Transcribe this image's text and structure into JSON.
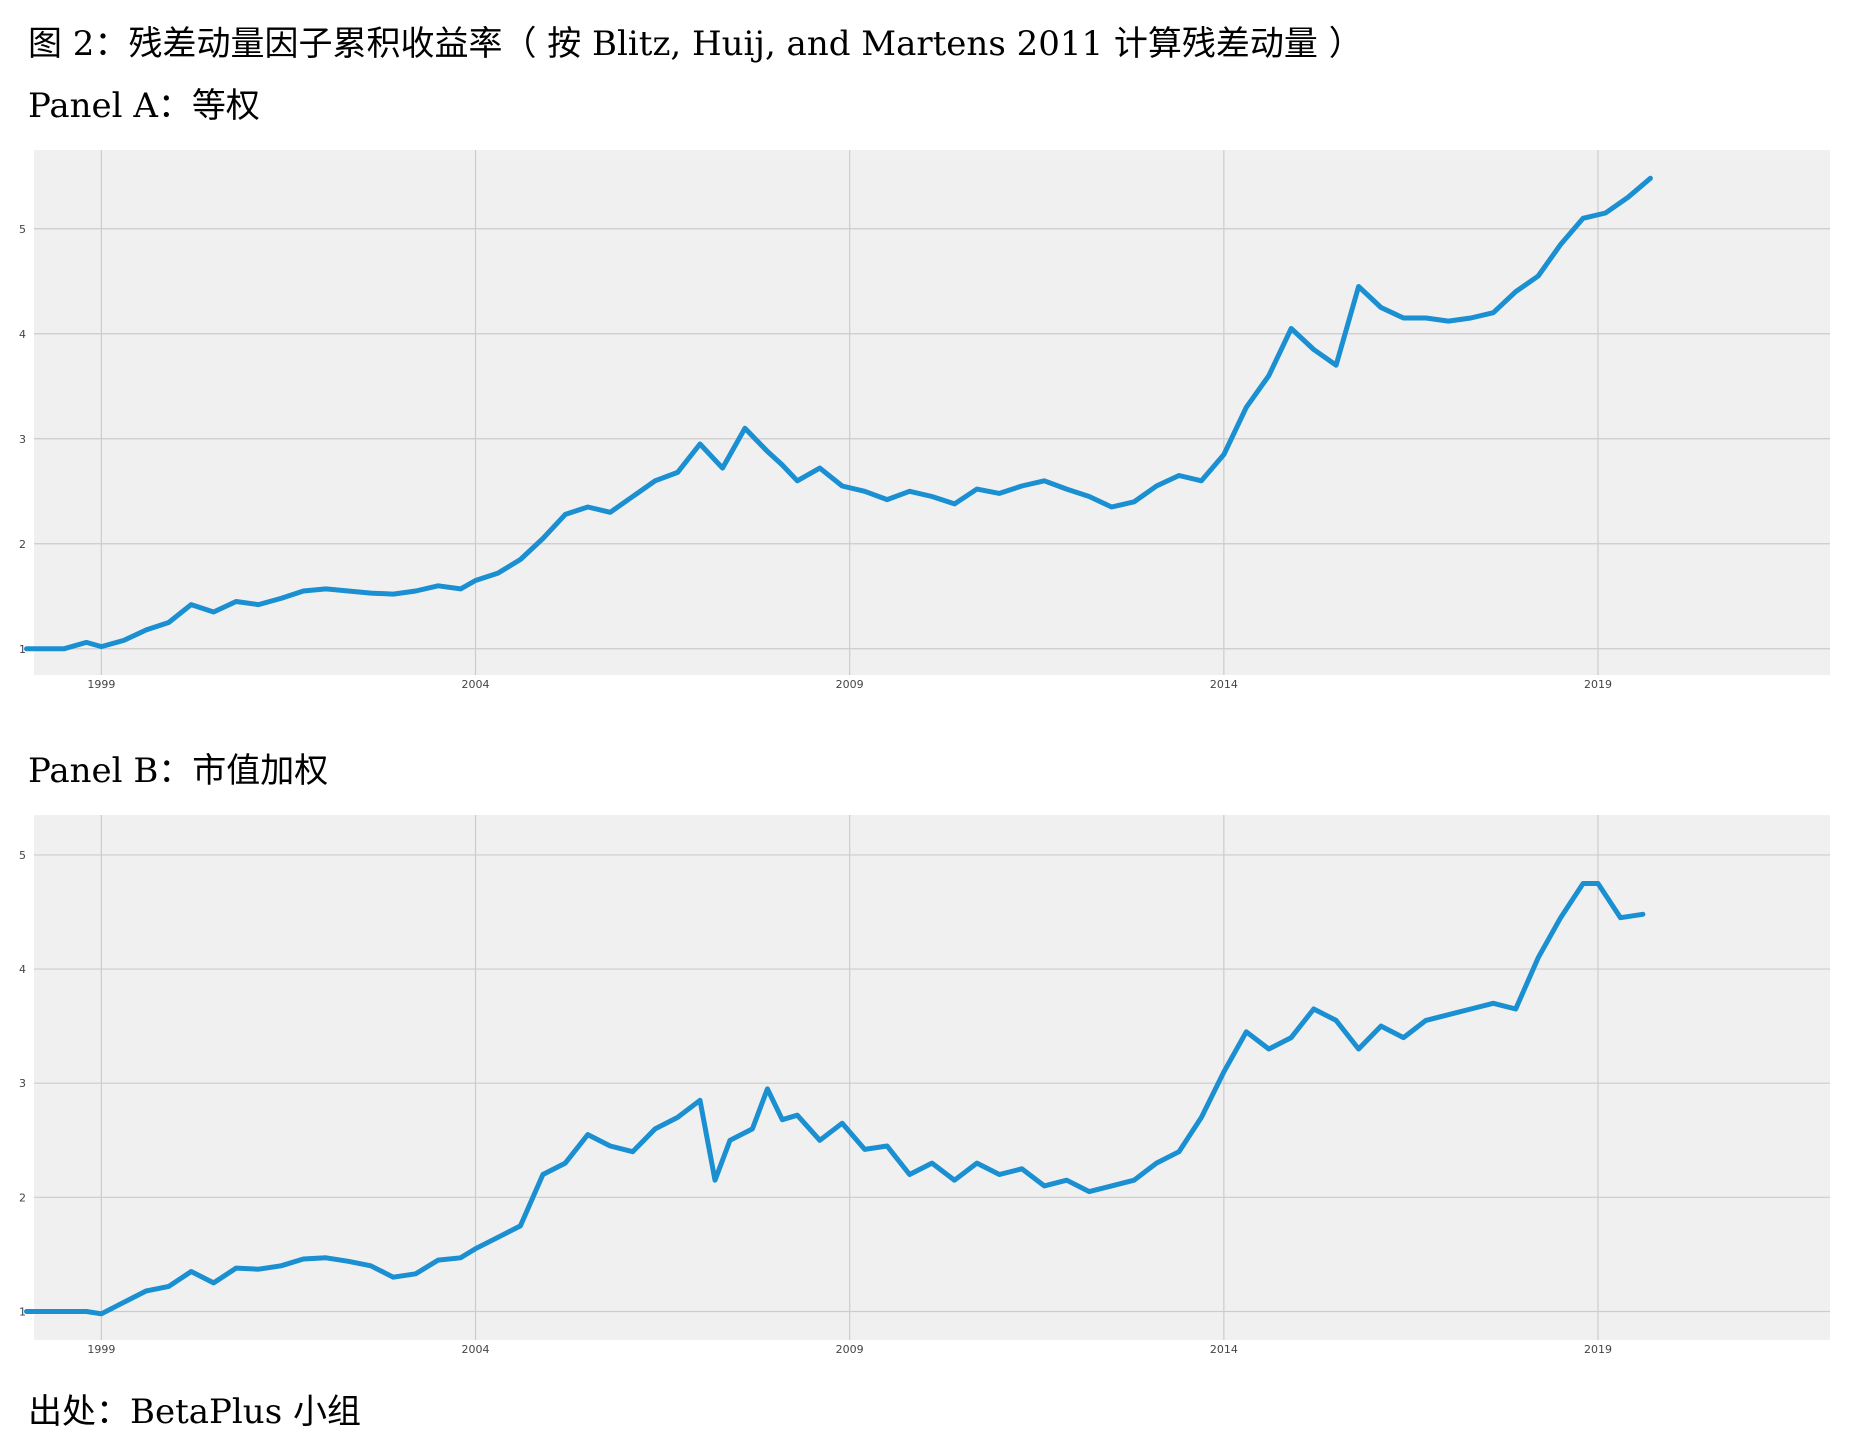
{
  "figure_title": "图 2：残差动量因子累积收益率（ 按 Blitz, Huij, and Martens 2011 计算残差动量 ）",
  "source": "出处：BetaPlus 小组",
  "colors": {
    "line": "#1a8fd1",
    "plot_bg": "#f0f0f0",
    "grid": "#cccccc"
  },
  "chart_data": [
    {
      "panel_label": "Panel A：等权",
      "type": "line",
      "xlabel": "",
      "ylabel": "",
      "x_ticks": [
        "1999",
        "2004",
        "2009",
        "2014",
        "2019"
      ],
      "y_ticks": [
        "1",
        "2",
        "3",
        "4",
        "5"
      ],
      "xlim": [
        1998.1,
        2022.1
      ],
      "ylim": [
        0.75,
        5.75
      ],
      "grid": true,
      "legend": "none",
      "series": [
        {
          "x": [
            1998.0,
            1998.5,
            1998.8,
            1999.0,
            1999.3,
            1999.6,
            1999.9,
            2000.2,
            2000.5,
            2000.8,
            2001.1,
            2001.4,
            2001.7,
            2002.0,
            2002.3,
            2002.6,
            2002.9,
            2003.2,
            2003.5,
            2003.8,
            2004.0,
            2004.3,
            2004.6,
            2004.9,
            2005.2,
            2005.5,
            2005.8,
            2006.1,
            2006.4,
            2006.7,
            2007.0,
            2007.3,
            2007.6,
            2007.9,
            2008.1,
            2008.3,
            2008.6,
            2008.9,
            2009.2,
            2009.5,
            2009.8,
            2010.1,
            2010.4,
            2010.7,
            2011.0,
            2011.3,
            2011.6,
            2011.9,
            2012.2,
            2012.5,
            2012.8,
            2013.1,
            2013.4,
            2013.7,
            2014.0,
            2014.3,
            2014.6,
            2014.9,
            2015.2,
            2015.5,
            2015.8,
            2016.1,
            2016.4,
            2016.7,
            2017.0,
            2017.3,
            2017.6,
            2017.9,
            2018.2,
            2018.5,
            2018.8,
            2019.1,
            2019.4,
            2019.7
          ],
          "y": [
            1.0,
            1.0,
            1.06,
            1.02,
            1.08,
            1.18,
            1.25,
            1.42,
            1.35,
            1.45,
            1.42,
            1.48,
            1.55,
            1.57,
            1.55,
            1.53,
            1.52,
            1.55,
            1.6,
            1.57,
            1.65,
            1.72,
            1.85,
            2.05,
            2.28,
            2.35,
            2.3,
            2.45,
            2.6,
            2.68,
            2.95,
            2.72,
            3.1,
            2.88,
            2.75,
            2.6,
            2.72,
            2.55,
            2.5,
            2.42,
            2.5,
            2.45,
            2.38,
            2.52,
            2.48,
            2.55,
            2.6,
            2.52,
            2.45,
            2.35,
            2.4,
            2.55,
            2.65,
            2.6,
            2.85,
            3.3,
            3.6,
            4.05,
            3.85,
            3.7,
            4.45,
            4.25,
            4.15,
            4.15,
            4.12,
            4.15,
            4.2,
            4.4,
            4.55,
            4.85,
            5.1,
            5.15,
            5.3,
            5.48
          ]
        }
      ]
    },
    {
      "panel_label": "Panel B：市值加权",
      "type": "line",
      "xlabel": "",
      "ylabel": "",
      "x_ticks": [
        "1999",
        "2004",
        "2009",
        "2014",
        "2019"
      ],
      "y_ticks": [
        "1",
        "2",
        "3",
        "4",
        "5"
      ],
      "xlim": [
        1998.1,
        2022.1
      ],
      "ylim": [
        0.75,
        5.35
      ],
      "grid": true,
      "legend": "none",
      "series": [
        {
          "x": [
            1998.0,
            1998.5,
            1998.8,
            1999.0,
            1999.3,
            1999.6,
            1999.9,
            2000.2,
            2000.5,
            2000.8,
            2001.1,
            2001.4,
            2001.7,
            2002.0,
            2002.3,
            2002.6,
            2002.9,
            2003.2,
            2003.5,
            2003.8,
            2004.0,
            2004.3,
            2004.6,
            2004.9,
            2005.2,
            2005.5,
            2005.8,
            2006.1,
            2006.4,
            2006.7,
            2007.0,
            2007.2,
            2007.4,
            2007.7,
            2007.9,
            2008.1,
            2008.3,
            2008.6,
            2008.9,
            2009.2,
            2009.5,
            2009.8,
            2010.1,
            2010.4,
            2010.7,
            2011.0,
            2011.3,
            2011.6,
            2011.9,
            2012.2,
            2012.5,
            2012.8,
            2013.1,
            2013.4,
            2013.7,
            2014.0,
            2014.3,
            2014.6,
            2014.9,
            2015.2,
            2015.5,
            2015.8,
            2016.1,
            2016.4,
            2016.7,
            2017.0,
            2017.3,
            2017.6,
            2017.9,
            2018.2,
            2018.5,
            2018.8,
            2019.0,
            2019.3,
            2019.6
          ],
          "y": [
            1.0,
            1.0,
            1.0,
            0.98,
            1.08,
            1.18,
            1.22,
            1.35,
            1.25,
            1.38,
            1.37,
            1.4,
            1.46,
            1.47,
            1.44,
            1.4,
            1.3,
            1.33,
            1.45,
            1.47,
            1.55,
            1.65,
            1.75,
            2.2,
            2.3,
            2.55,
            2.45,
            2.4,
            2.6,
            2.7,
            2.85,
            2.15,
            2.5,
            2.6,
            2.95,
            2.68,
            2.72,
            2.5,
            2.65,
            2.42,
            2.45,
            2.2,
            2.3,
            2.15,
            2.3,
            2.2,
            2.25,
            2.1,
            2.15,
            2.05,
            2.1,
            2.15,
            2.3,
            2.4,
            2.7,
            3.1,
            3.45,
            3.3,
            3.4,
            3.65,
            3.55,
            3.3,
            3.5,
            3.4,
            3.55,
            3.6,
            3.65,
            3.7,
            3.65,
            4.1,
            4.45,
            4.75,
            4.75,
            4.45,
            4.48
          ]
        }
      ]
    }
  ]
}
